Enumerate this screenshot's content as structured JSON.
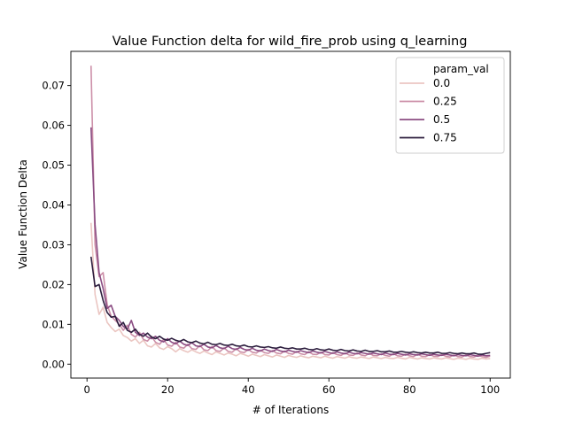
{
  "chart_data": {
    "type": "line",
    "title": "Value Function delta for wild_fire_prob using q_learning",
    "xlabel": "# of Iterations",
    "ylabel": "Value Function Delta",
    "xlim": [
      -4,
      105
    ],
    "ylim": [
      -0.0035,
      0.0786
    ],
    "xticks": [
      0,
      20,
      40,
      60,
      80,
      100
    ],
    "yticks": [
      0.0,
      0.01,
      0.02,
      0.03,
      0.04,
      0.05,
      0.06,
      0.07
    ],
    "ytick_labels": [
      "0.00",
      "0.01",
      "0.02",
      "0.03",
      "0.04",
      "0.05",
      "0.06",
      "0.07"
    ],
    "grid": false,
    "legend": {
      "title": "param_val",
      "placement": "top-right"
    },
    "x": [
      1,
      2,
      3,
      4,
      5,
      6,
      7,
      8,
      9,
      10,
      11,
      12,
      13,
      14,
      15,
      16,
      17,
      18,
      19,
      20,
      21,
      22,
      23,
      24,
      25,
      26,
      27,
      28,
      29,
      30,
      31,
      32,
      33,
      34,
      35,
      36,
      37,
      38,
      39,
      40,
      41,
      42,
      43,
      44,
      45,
      46,
      47,
      48,
      49,
      50,
      51,
      52,
      53,
      54,
      55,
      56,
      57,
      58,
      59,
      60,
      61,
      62,
      63,
      64,
      65,
      66,
      67,
      68,
      69,
      70,
      71,
      72,
      73,
      74,
      75,
      76,
      77,
      78,
      79,
      80,
      81,
      82,
      83,
      84,
      85,
      86,
      87,
      88,
      89,
      90,
      91,
      92,
      93,
      94,
      95,
      96,
      97,
      98,
      99,
      100
    ],
    "series": [
      {
        "name": "0.0",
        "color": "#ebc6c2",
        "values": [
          0.0355,
          0.0175,
          0.0125,
          0.0143,
          0.0105,
          0.0092,
          0.0082,
          0.0088,
          0.0072,
          0.0067,
          0.0058,
          0.0064,
          0.0052,
          0.006,
          0.0046,
          0.0043,
          0.0052,
          0.0041,
          0.0037,
          0.0044,
          0.0039,
          0.0031,
          0.0039,
          0.0034,
          0.003,
          0.0036,
          0.0031,
          0.0027,
          0.0033,
          0.0028,
          0.0024,
          0.0031,
          0.0027,
          0.0023,
          0.0028,
          0.0025,
          0.0021,
          0.0027,
          0.0024,
          0.002,
          0.0025,
          0.0022,
          0.0019,
          0.0024,
          0.0021,
          0.0018,
          0.0023,
          0.002,
          0.0017,
          0.0022,
          0.0019,
          0.0017,
          0.0021,
          0.0018,
          0.0016,
          0.002,
          0.0018,
          0.0016,
          0.002,
          0.0017,
          0.0015,
          0.0019,
          0.0017,
          0.0015,
          0.0019,
          0.0016,
          0.0015,
          0.0018,
          0.0016,
          0.0014,
          0.0018,
          0.0016,
          0.0014,
          0.0017,
          0.0015,
          0.0014,
          0.0017,
          0.0015,
          0.0013,
          0.0017,
          0.0015,
          0.0013,
          0.0016,
          0.0014,
          0.0013,
          0.0016,
          0.0014,
          0.0013,
          0.0016,
          0.0014,
          0.0012,
          0.0015,
          0.0014,
          0.0012,
          0.0015,
          0.0013,
          0.0012,
          0.0015,
          0.0013,
          0.0014
        ]
      },
      {
        "name": "0.25",
        "color": "#cc8fa8",
        "values": [
          0.075,
          0.03,
          0.022,
          0.023,
          0.015,
          0.012,
          0.011,
          0.01,
          0.0085,
          0.0098,
          0.0075,
          0.0068,
          0.008,
          0.0062,
          0.0058,
          0.007,
          0.0055,
          0.005,
          0.0062,
          0.0048,
          0.0045,
          0.0055,
          0.0043,
          0.004,
          0.005,
          0.0039,
          0.0037,
          0.0047,
          0.0036,
          0.0034,
          0.0044,
          0.0034,
          0.0032,
          0.0041,
          0.0032,
          0.003,
          0.0039,
          0.0031,
          0.0029,
          0.0037,
          0.003,
          0.0028,
          0.0035,
          0.0029,
          0.0027,
          0.0034,
          0.0028,
          0.0026,
          0.0033,
          0.0027,
          0.0025,
          0.0032,
          0.0026,
          0.0024,
          0.0031,
          0.0025,
          0.0024,
          0.003,
          0.0024,
          0.0023,
          0.0029,
          0.0024,
          0.0022,
          0.0028,
          0.0023,
          0.0022,
          0.0028,
          0.0023,
          0.0021,
          0.0027,
          0.0022,
          0.0021,
          0.0026,
          0.0022,
          0.002,
          0.0026,
          0.0021,
          0.002,
          0.0025,
          0.0021,
          0.0019,
          0.0025,
          0.002,
          0.0019,
          0.0024,
          0.002,
          0.0019,
          0.0024,
          0.002,
          0.0018,
          0.0023,
          0.0019,
          0.0018,
          0.0023,
          0.0019,
          0.0018,
          0.0022,
          0.0019,
          0.0017,
          0.002
        ]
      },
      {
        "name": "0.5",
        "color": "#8b4d83",
        "values": [
          0.0595,
          0.035,
          0.023,
          0.019,
          0.014,
          0.0148,
          0.012,
          0.011,
          0.0095,
          0.0088,
          0.011,
          0.008,
          0.0072,
          0.0078,
          0.0068,
          0.0064,
          0.007,
          0.006,
          0.0056,
          0.0064,
          0.0055,
          0.0051,
          0.0058,
          0.005,
          0.0047,
          0.0054,
          0.0046,
          0.0044,
          0.005,
          0.0043,
          0.0041,
          0.0047,
          0.0041,
          0.0039,
          0.0045,
          0.0039,
          0.0037,
          0.0042,
          0.0037,
          0.0035,
          0.004,
          0.0035,
          0.0033,
          0.0038,
          0.0034,
          0.0032,
          0.0037,
          0.0033,
          0.0031,
          0.0035,
          0.0032,
          0.003,
          0.0034,
          0.0031,
          0.0029,
          0.0033,
          0.003,
          0.0028,
          0.0032,
          0.0029,
          0.0027,
          0.0031,
          0.0028,
          0.0026,
          0.003,
          0.0027,
          0.0026,
          0.0029,
          0.0027,
          0.0025,
          0.0028,
          0.0026,
          0.0024,
          0.0028,
          0.0025,
          0.0024,
          0.0027,
          0.0025,
          0.0023,
          0.0026,
          0.0024,
          0.0023,
          0.0026,
          0.0024,
          0.0022,
          0.0025,
          0.0023,
          0.0022,
          0.0025,
          0.0023,
          0.0021,
          0.0024,
          0.0022,
          0.0021,
          0.0024,
          0.0022,
          0.002,
          0.0023,
          0.0021,
          0.0022
        ]
      },
      {
        "name": "0.75",
        "color": "#2d1e3e",
        "values": [
          0.027,
          0.0195,
          0.02,
          0.016,
          0.013,
          0.0118,
          0.012,
          0.0095,
          0.0105,
          0.0085,
          0.008,
          0.0088,
          0.0075,
          0.007,
          0.0078,
          0.0068,
          0.0064,
          0.007,
          0.0063,
          0.006,
          0.0065,
          0.006,
          0.0057,
          0.0062,
          0.0056,
          0.0054,
          0.0058,
          0.0053,
          0.0051,
          0.0055,
          0.005,
          0.0049,
          0.0052,
          0.0048,
          0.0047,
          0.005,
          0.0046,
          0.0045,
          0.0048,
          0.0044,
          0.0043,
          0.0046,
          0.0043,
          0.0042,
          0.0044,
          0.0041,
          0.004,
          0.0043,
          0.004,
          0.0039,
          0.0041,
          0.0038,
          0.0038,
          0.004,
          0.0037,
          0.0036,
          0.0039,
          0.0036,
          0.0035,
          0.0038,
          0.0035,
          0.0034,
          0.0037,
          0.0034,
          0.0033,
          0.0036,
          0.0033,
          0.0032,
          0.0035,
          0.0032,
          0.0032,
          0.0034,
          0.0031,
          0.0031,
          0.0033,
          0.003,
          0.003,
          0.0032,
          0.003,
          0.0029,
          0.0031,
          0.0029,
          0.0028,
          0.003,
          0.0028,
          0.0028,
          0.003,
          0.0027,
          0.0027,
          0.0029,
          0.0027,
          0.0026,
          0.0028,
          0.0026,
          0.0026,
          0.0028,
          0.0025,
          0.0025,
          0.0027,
          0.0029
        ]
      }
    ]
  }
}
